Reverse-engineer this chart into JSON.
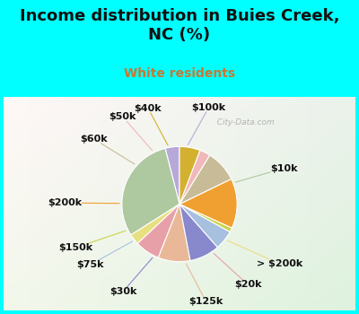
{
  "title": "Income distribution in Buies Creek,\nNC (%)",
  "subtitle": "White residents",
  "title_color": "#111111",
  "subtitle_color": "#c87832",
  "bg_top_color": "#00ffff",
  "chart_bg_left": "#f0faf0",
  "chart_bg_right": "#e0f0e8",
  "labels": [
    "$100k",
    "$10k",
    "> $200k",
    "$20k",
    "$125k",
    "$30k",
    "$75k",
    "$150k",
    "$200k",
    "$60k",
    "$50k",
    "$40k"
  ],
  "values": [
    4.0,
    30.0,
    3.0,
    7.0,
    9.0,
    8.5,
    5.5,
    1.2,
    14.0,
    9.0,
    3.0,
    5.8
  ],
  "colors": [
    "#b8a8d8",
    "#aec8a0",
    "#e8df80",
    "#e8a0a8",
    "#e8b898",
    "#8888cc",
    "#a8c0e0",
    "#c8d448",
    "#f0a030",
    "#c8bc98",
    "#f0b8b8",
    "#d4b030"
  ],
  "label_color": "#111111",
  "watermark": "  City-Data.com",
  "startangle": 90,
  "label_fontsize": 8.0,
  "title_fontsize": 13,
  "subtitle_fontsize": 10,
  "wedge_edge_color": "white",
  "wedge_lw": 0.8
}
